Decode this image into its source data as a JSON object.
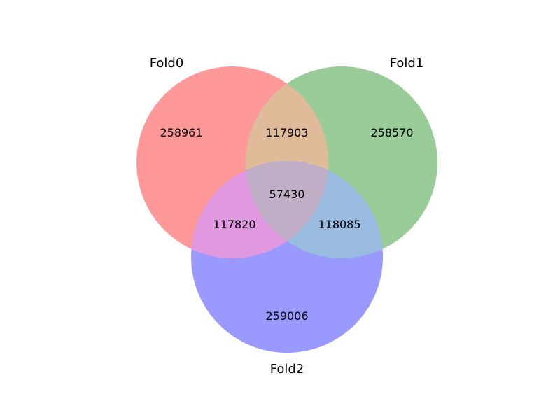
{
  "venn": {
    "sets": [
      {
        "name": "Fold0",
        "color": "#ff0000"
      },
      {
        "name": "Fold1",
        "color": "#008000"
      },
      {
        "name": "Fold2",
        "color": "#0000ff"
      }
    ],
    "regions": {
      "fold0_only": "258961",
      "fold1_only": "258570",
      "fold2_only": "259006",
      "fold0_fold1": "117903",
      "fold0_fold2": "117820",
      "fold1_fold2": "118085",
      "fold0_fold1_fold2": "57430"
    }
  }
}
